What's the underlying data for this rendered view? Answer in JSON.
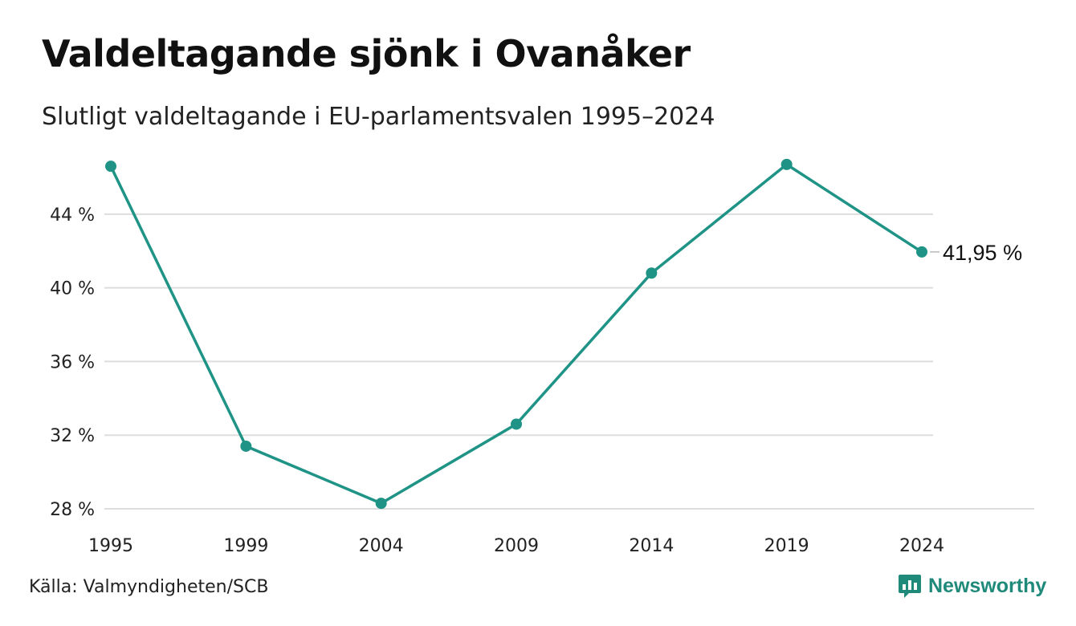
{
  "title": "Valdeltagande sjönk i Ovanåker",
  "subtitle": "Slutligt valdeltagande i EU-parlamentsvalen 1995–2024",
  "source": "Källa: Valmyndigheten/SCB",
  "brand": {
    "name": "Newsworthy",
    "logo_icon": "newsworthy-chart-bubble-icon"
  },
  "colors": {
    "line": "#1f9486",
    "grid": "#dddddd",
    "brand": "#1f8a7a",
    "text": "#222222"
  },
  "chart_data": {
    "type": "line",
    "x": [
      "1995",
      "1999",
      "2004",
      "2009",
      "2014",
      "2019",
      "2024"
    ],
    "y_ticks": [
      28,
      32,
      36,
      40,
      44
    ],
    "y_tick_labels": [
      "28 %",
      "32 %",
      "36 %",
      "40 %",
      "44 %"
    ],
    "ylim": [
      28,
      47
    ],
    "series": [
      {
        "values": [
          46.6,
          31.4,
          28.3,
          32.6,
          40.8,
          46.7,
          41.95
        ]
      }
    ],
    "end_label": "41,95 %",
    "grid": true,
    "legend": "none",
    "xlabel": "",
    "ylabel": ""
  }
}
